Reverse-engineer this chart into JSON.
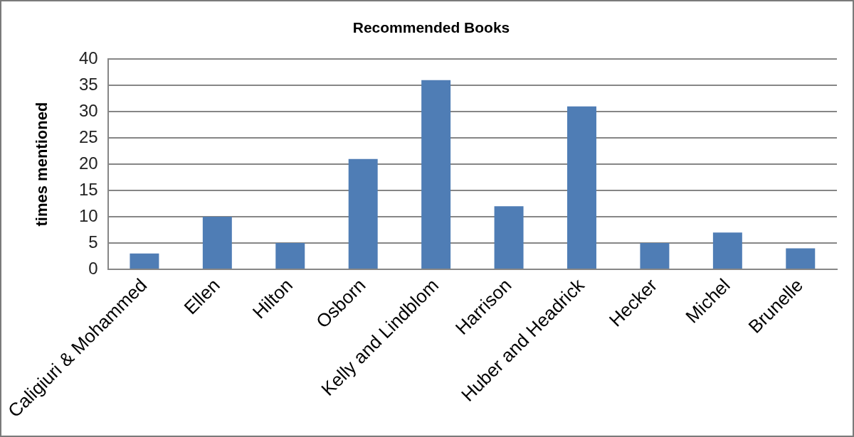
{
  "chart_data": {
    "type": "bar",
    "title": "Recommended Books",
    "ylabel": "times mentioned",
    "categories": [
      "Caligiuri & Mohammed",
      "Ellen",
      "Hilton",
      "Osborn",
      "Kelly and Lindblom",
      "Harrison",
      "Huber and Headrick",
      "Hecker",
      "Michel",
      "Brunelle"
    ],
    "values": [
      3,
      10,
      5,
      21,
      36,
      12,
      31,
      5,
      7,
      4
    ],
    "color": "#4f7db5",
    "ylim": [
      0,
      40
    ],
    "yticks": [
      0,
      5,
      10,
      15,
      20,
      25,
      30,
      35,
      40
    ],
    "grid": "y"
  }
}
